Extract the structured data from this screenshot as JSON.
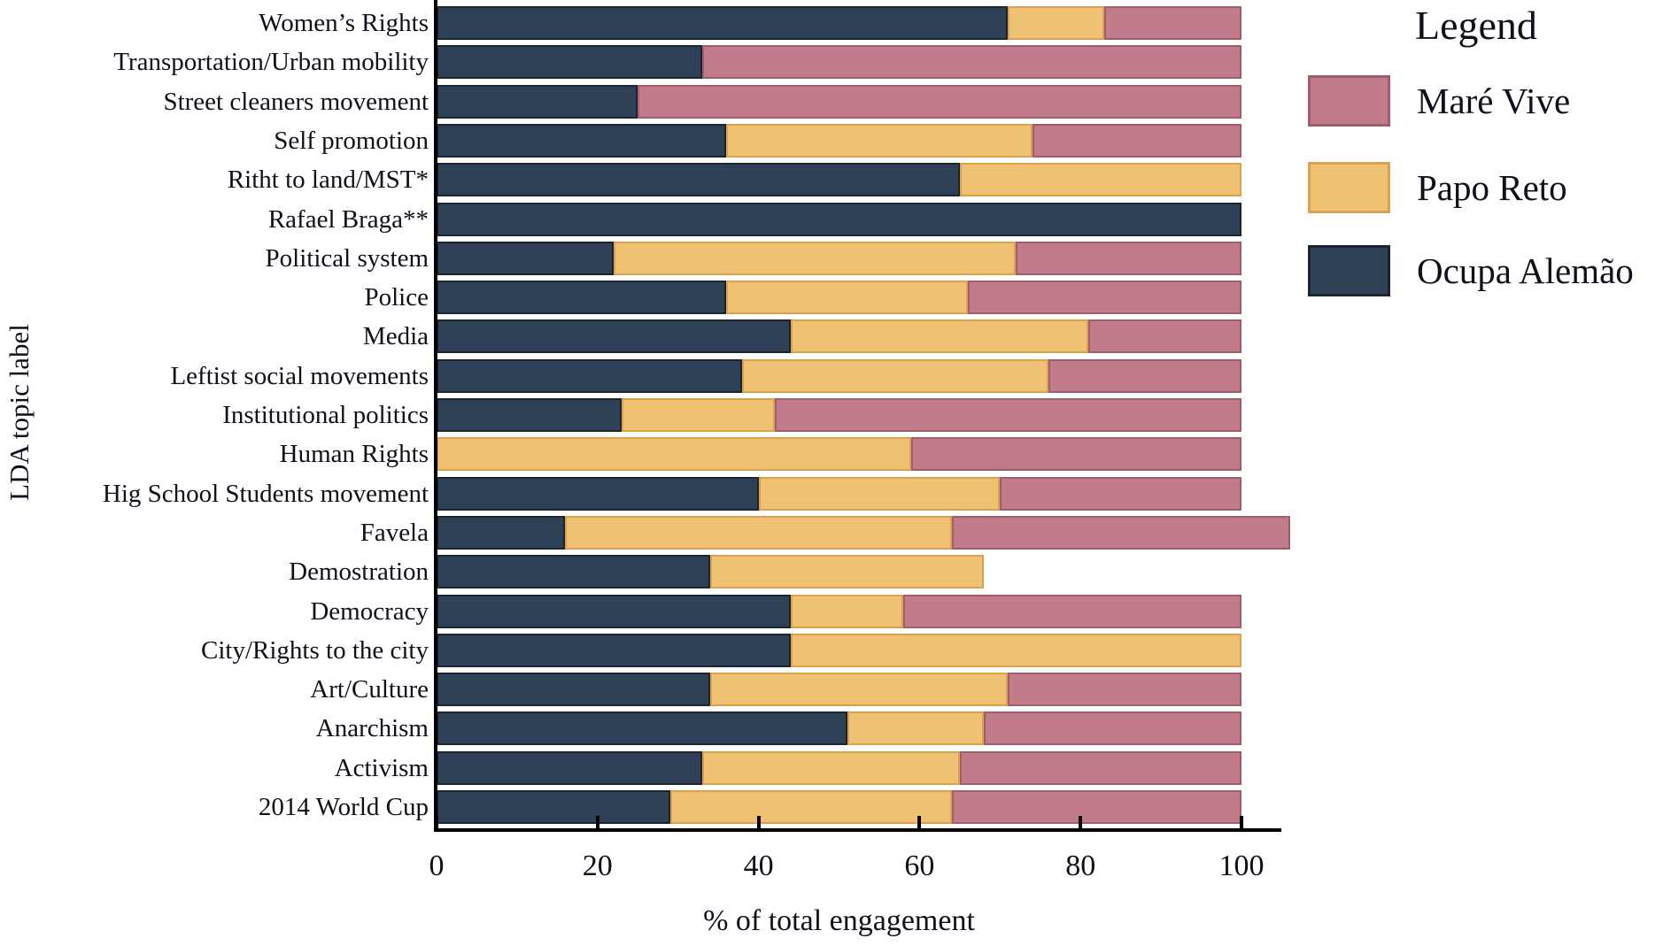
{
  "chart_data": {
    "type": "bar",
    "orientation": "horizontal",
    "stacked": true,
    "xlabel": "% of total engagement",
    "ylabel": "LDA topic label",
    "xlim": [
      0,
      105
    ],
    "x_ticks": [
      0,
      20,
      40,
      60,
      80,
      100
    ],
    "grid": false,
    "categories": [
      "Women’s Rights",
      "Transportation/Urban mobility",
      "Street cleaners movement",
      "Self promotion",
      "Ritht to land/MST*",
      "Rafael Braga**",
      "Political system",
      "Police",
      "Media",
      "Leftist social movements",
      "Institutional politics",
      "Human Rights",
      "Hig School Students movement",
      "Favela",
      "Demostration",
      "Democracy",
      "City/Rights to the city",
      "Art/Culture",
      "Anarchism",
      "Activism",
      "2014 World Cup"
    ],
    "series": [
      {
        "name": "Ocupa Alemão",
        "color": "#2e4156",
        "border_color": "#1a2533",
        "values": [
          71,
          33,
          25,
          36,
          65,
          100,
          22,
          36,
          44,
          38,
          23,
          0,
          40,
          16,
          34,
          44,
          44,
          34,
          51,
          33,
          29
        ]
      },
      {
        "name": "Papo Reto",
        "color": "#eec173",
        "border_color": "#dca14f",
        "values": [
          12,
          0,
          0,
          38,
          35,
          0,
          50,
          30,
          37,
          38,
          19,
          59,
          30,
          48,
          34,
          14,
          56,
          37,
          17,
          32,
          35
        ]
      },
      {
        "name": "Maré Vive",
        "color": "#c27b8b",
        "border_color": "#a05d6e",
        "values": [
          17,
          67,
          75,
          26,
          0,
          0,
          28,
          34,
          19,
          24,
          58,
          41,
          30,
          42,
          0,
          42,
          0,
          29,
          32,
          35,
          36
        ]
      }
    ],
    "legend": {
      "title": "Legend",
      "position": "right",
      "items": [
        {
          "label": "Maré Vive",
          "color": "#c27b8b",
          "border_color": "#a05d6e"
        },
        {
          "label": "Papo Reto",
          "color": "#eec173",
          "border_color": "#dca14f"
        },
        {
          "label": "Ocupa Alemão",
          "color": "#2e4156",
          "border_color": "#1a2533"
        }
      ]
    }
  }
}
